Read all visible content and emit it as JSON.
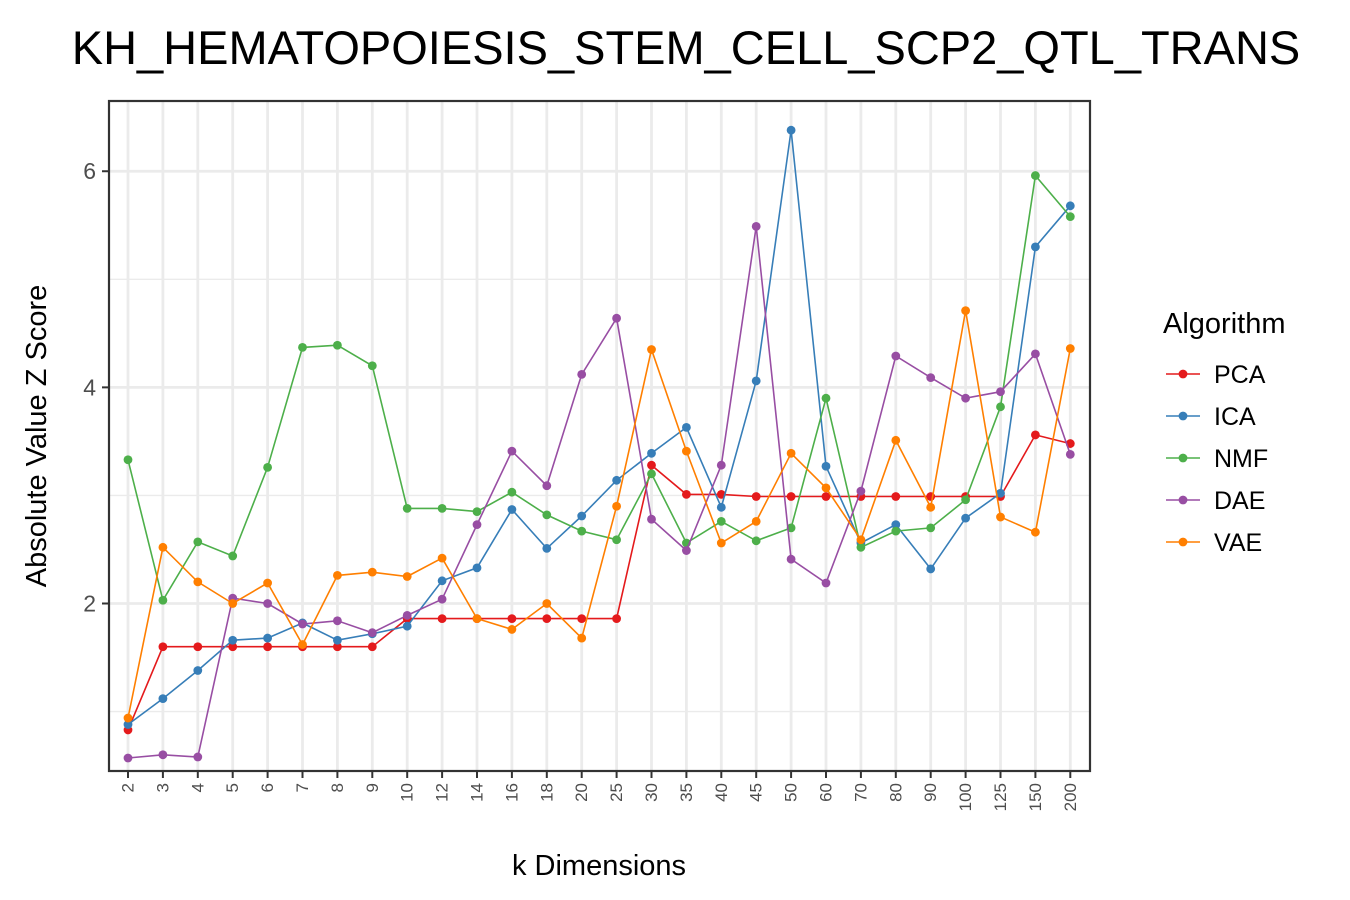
{
  "chart_data": {
    "type": "line",
    "title": "KH_HEMATOPOIESIS_STEM_CELL_SCP2_QTL_TRANS",
    "xlabel": "k Dimensions",
    "ylabel": "Absolute Value Z Score",
    "categories": [
      "2",
      "3",
      "4",
      "5",
      "6",
      "7",
      "8",
      "9",
      "10",
      "12",
      "14",
      "16",
      "18",
      "20",
      "25",
      "30",
      "35",
      "40",
      "45",
      "50",
      "60",
      "70",
      "80",
      "90",
      "100",
      "125",
      "150",
      "200"
    ],
    "ylim": [
      0.45,
      6.65
    ],
    "yticks": [
      2,
      4,
      6
    ],
    "grid": true,
    "legend": {
      "title": "Algorithm",
      "position": "right"
    },
    "series": [
      {
        "name": "PCA",
        "color": "#e41a1c",
        "values": [
          0.83,
          1.6,
          1.6,
          1.6,
          1.6,
          1.6,
          1.6,
          1.6,
          1.86,
          1.86,
          1.86,
          1.86,
          1.86,
          1.86,
          1.86,
          3.28,
          3.01,
          3.01,
          2.99,
          2.99,
          2.99,
          2.99,
          2.99,
          2.99,
          2.99,
          2.99,
          3.56,
          3.48
        ]
      },
      {
        "name": "ICA",
        "color": "#377eb8",
        "values": [
          0.88,
          1.12,
          1.38,
          1.66,
          1.68,
          1.82,
          1.66,
          1.72,
          1.79,
          2.21,
          2.33,
          2.87,
          2.51,
          2.81,
          3.14,
          3.39,
          3.63,
          2.89,
          4.06,
          6.38,
          3.27,
          2.56,
          2.73,
          2.32,
          2.79,
          3.02,
          5.3,
          5.68
        ]
      },
      {
        "name": "NMF",
        "color": "#4daf4a",
        "values": [
          3.33,
          2.03,
          2.57,
          2.44,
          3.26,
          4.37,
          4.39,
          4.2,
          2.88,
          2.88,
          2.85,
          3.03,
          2.82,
          2.67,
          2.59,
          3.2,
          2.56,
          2.76,
          2.58,
          2.7,
          3.9,
          2.52,
          2.67,
          2.7,
          2.96,
          3.82,
          5.96,
          5.58
        ]
      },
      {
        "name": "DAE",
        "color": "#984ea3",
        "values": [
          0.57,
          0.6,
          0.58,
          2.05,
          2.0,
          1.81,
          1.84,
          1.73,
          1.89,
          2.04,
          2.73,
          3.41,
          3.09,
          4.12,
          4.64,
          2.78,
          2.49,
          3.28,
          5.49,
          2.41,
          2.19,
          3.04,
          4.29,
          4.09,
          3.9,
          3.96,
          4.31,
          3.38
        ]
      },
      {
        "name": "VAE",
        "color": "#ff7f00",
        "values": [
          0.94,
          2.52,
          2.2,
          2.0,
          2.19,
          1.62,
          2.26,
          2.29,
          2.25,
          2.42,
          1.86,
          1.76,
          2.0,
          1.68,
          2.9,
          4.35,
          3.41,
          2.56,
          2.76,
          3.39,
          3.07,
          2.59,
          3.51,
          2.89,
          4.71,
          2.8,
          2.66,
          4.36
        ]
      }
    ]
  }
}
